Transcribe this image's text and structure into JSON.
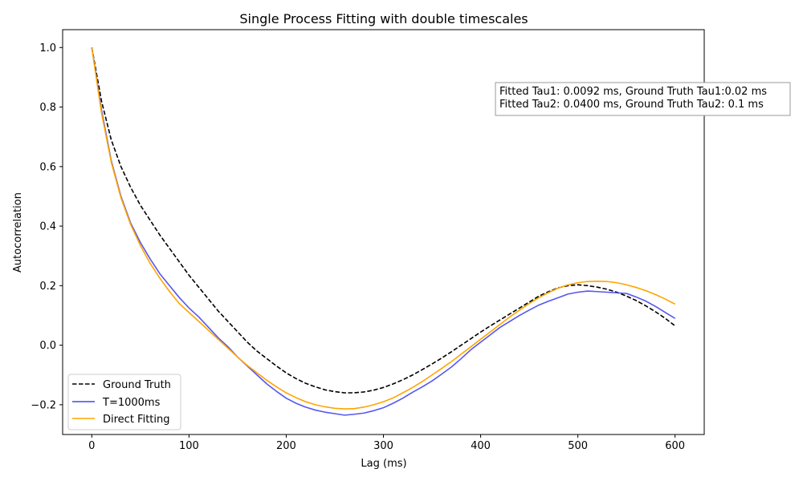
{
  "chart_data": {
    "type": "line",
    "title": "Single Process Fitting with double timescales",
    "xlabel": "Lag (ms)",
    "ylabel": "Autocorrelation",
    "xlim": [
      -30,
      630
    ],
    "ylim": [
      -0.3,
      1.06
    ],
    "xticks": [
      0,
      100,
      200,
      300,
      400,
      500,
      600
    ],
    "yticks": [
      -0.2,
      0.0,
      0.2,
      0.4,
      0.6,
      0.8,
      1.0
    ],
    "xtick_labels": [
      "0",
      "100",
      "200",
      "300",
      "400",
      "500",
      "600"
    ],
    "ytick_labels": [
      "−0.2",
      "0.0",
      "0.2",
      "0.4",
      "0.6",
      "0.8",
      "1.0"
    ],
    "grid": false,
    "legend_position": "bottom-left",
    "annotation": {
      "lines": [
        "Fitted Tau1: 0.0092 ms, Ground Truth Tau1:0.02 ms",
        "Fitted Tau2: 0.0400 ms, Ground Truth Tau2: 0.1 ms"
      ],
      "position": "upper-right"
    },
    "series": [
      {
        "name": "Ground Truth",
        "color": "#000000",
        "style": "dashed",
        "x": [
          0,
          10,
          20,
          30,
          40,
          50,
          60,
          70,
          80,
          90,
          100,
          110,
          120,
          130,
          140,
          150,
          160,
          170,
          180,
          190,
          200,
          210,
          220,
          230,
          240,
          250,
          260,
          270,
          280,
          290,
          300,
          310,
          320,
          330,
          340,
          350,
          360,
          370,
          380,
          390,
          400,
          410,
          420,
          430,
          440,
          450,
          460,
          470,
          480,
          490,
          500,
          510,
          520,
          530,
          540,
          550,
          560,
          570,
          580,
          590,
          600
        ],
        "y": [
          1.0,
          0.82,
          0.69,
          0.6,
          0.53,
          0.47,
          0.42,
          0.37,
          0.325,
          0.28,
          0.235,
          0.195,
          0.155,
          0.115,
          0.08,
          0.045,
          0.01,
          -0.02,
          -0.045,
          -0.07,
          -0.093,
          -0.112,
          -0.128,
          -0.14,
          -0.15,
          -0.156,
          -0.16,
          -0.16,
          -0.157,
          -0.151,
          -0.142,
          -0.13,
          -0.116,
          -0.1,
          -0.082,
          -0.063,
          -0.043,
          -0.022,
          0.0,
          0.022,
          0.044,
          0.065,
          0.085,
          0.105,
          0.125,
          0.145,
          0.165,
          0.18,
          0.193,
          0.2,
          0.203,
          0.2,
          0.195,
          0.188,
          0.178,
          0.165,
          0.15,
          0.132,
          0.112,
          0.09,
          0.065
        ]
      },
      {
        "name": "T=1000ms",
        "color": "#4444ee",
        "style": "solid",
        "x": [
          0,
          10,
          20,
          30,
          40,
          50,
          60,
          70,
          80,
          90,
          100,
          110,
          120,
          130,
          140,
          150,
          160,
          170,
          180,
          190,
          200,
          210,
          220,
          230,
          240,
          250,
          260,
          270,
          280,
          290,
          300,
          310,
          320,
          330,
          340,
          350,
          360,
          370,
          380,
          390,
          400,
          410,
          420,
          430,
          440,
          450,
          460,
          470,
          480,
          490,
          500,
          510,
          520,
          530,
          540,
          550,
          560,
          570,
          580,
          590,
          600
        ],
        "y": [
          1.0,
          0.79,
          0.62,
          0.5,
          0.41,
          0.345,
          0.29,
          0.24,
          0.2,
          0.16,
          0.125,
          0.095,
          0.06,
          0.025,
          -0.005,
          -0.04,
          -0.07,
          -0.1,
          -0.13,
          -0.155,
          -0.178,
          -0.195,
          -0.208,
          -0.218,
          -0.225,
          -0.23,
          -0.235,
          -0.232,
          -0.228,
          -0.22,
          -0.21,
          -0.195,
          -0.178,
          -0.158,
          -0.14,
          -0.12,
          -0.097,
          -0.073,
          -0.045,
          -0.015,
          0.01,
          0.035,
          0.06,
          0.08,
          0.1,
          0.118,
          0.135,
          0.148,
          0.16,
          0.172,
          0.178,
          0.182,
          0.18,
          0.178,
          0.176,
          0.174,
          0.162,
          0.148,
          0.13,
          0.11,
          0.09
        ]
      },
      {
        "name": "Direct Fitting",
        "color": "#ffa500",
        "style": "solid",
        "x": [
          0,
          10,
          20,
          30,
          40,
          50,
          60,
          70,
          80,
          90,
          100,
          110,
          120,
          130,
          140,
          150,
          160,
          170,
          180,
          190,
          200,
          210,
          220,
          230,
          240,
          250,
          260,
          270,
          280,
          290,
          300,
          310,
          320,
          330,
          340,
          350,
          360,
          370,
          380,
          390,
          400,
          410,
          420,
          430,
          440,
          450,
          460,
          470,
          480,
          490,
          500,
          510,
          520,
          530,
          540,
          550,
          560,
          570,
          580,
          590,
          600
        ],
        "y": [
          1.0,
          0.78,
          0.615,
          0.495,
          0.405,
          0.335,
          0.275,
          0.225,
          0.18,
          0.14,
          0.11,
          0.08,
          0.05,
          0.02,
          -0.01,
          -0.04,
          -0.068,
          -0.093,
          -0.118,
          -0.14,
          -0.16,
          -0.176,
          -0.19,
          -0.2,
          -0.207,
          -0.212,
          -0.214,
          -0.213,
          -0.208,
          -0.2,
          -0.19,
          -0.177,
          -0.16,
          -0.142,
          -0.122,
          -0.1,
          -0.078,
          -0.055,
          -0.03,
          -0.005,
          0.02,
          0.045,
          0.07,
          0.095,
          0.118,
          0.14,
          0.16,
          0.177,
          0.192,
          0.203,
          0.21,
          0.214,
          0.215,
          0.214,
          0.21,
          0.203,
          0.194,
          0.183,
          0.17,
          0.155,
          0.138
        ]
      }
    ]
  }
}
